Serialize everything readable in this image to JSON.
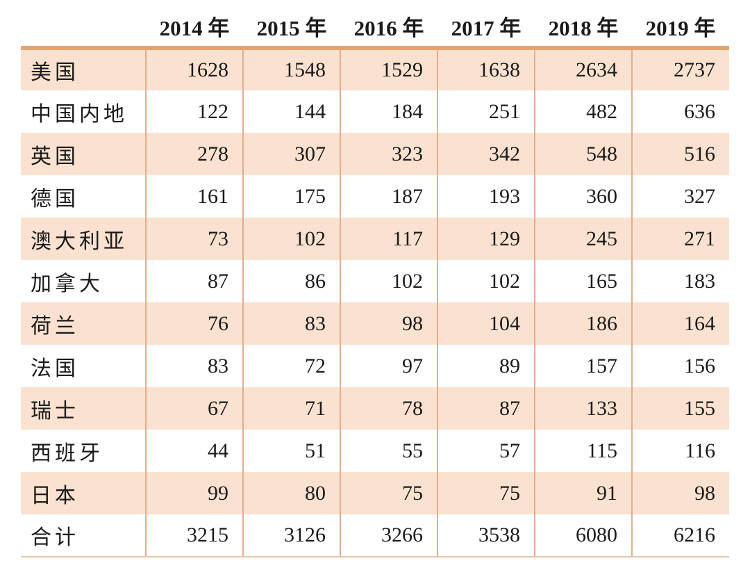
{
  "colors": {
    "row_shade": "#fbe2d0",
    "top_border": "#e5a472",
    "column_divider": "#e3ad8d",
    "bottom_border": "#eac5a9",
    "text": "#1a1a1a",
    "background": "#ffffff"
  },
  "chart_data": {
    "type": "table",
    "title": "",
    "columns": [
      "",
      "2014 年",
      "2015 年",
      "2016 年",
      "2017 年",
      "2018 年",
      "2019 年"
    ],
    "categories": [
      "美国",
      "中国内地",
      "英国",
      "德国",
      "澳大利亚",
      "加拿大",
      "荷兰",
      "法国",
      "瑞士",
      "西班牙",
      "日本",
      "合计"
    ],
    "series": [
      {
        "name": "2014 年",
        "values": [
          1628,
          122,
          278,
          161,
          73,
          87,
          76,
          83,
          67,
          44,
          99,
          3215
        ]
      },
      {
        "name": "2015 年",
        "values": [
          1548,
          144,
          307,
          175,
          102,
          86,
          83,
          72,
          71,
          51,
          80,
          3126
        ]
      },
      {
        "name": "2016 年",
        "values": [
          1529,
          184,
          323,
          187,
          117,
          102,
          98,
          97,
          78,
          55,
          75,
          3266
        ]
      },
      {
        "name": "2017 年",
        "values": [
          1638,
          251,
          342,
          193,
          129,
          102,
          104,
          89,
          87,
          57,
          75,
          3538
        ]
      },
      {
        "name": "2018 年",
        "values": [
          2634,
          482,
          548,
          360,
          245,
          165,
          186,
          157,
          133,
          115,
          91,
          6080
        ]
      },
      {
        "name": "2019 年",
        "values": [
          2737,
          636,
          516,
          327,
          271,
          183,
          164,
          156,
          155,
          116,
          98,
          6216
        ]
      }
    ],
    "layout": {
      "row_striping": "odd-rows-shaded",
      "header_style": "bold, no borders",
      "grid": "vertical dividers only, thick top rule, thin bottom rule"
    }
  }
}
